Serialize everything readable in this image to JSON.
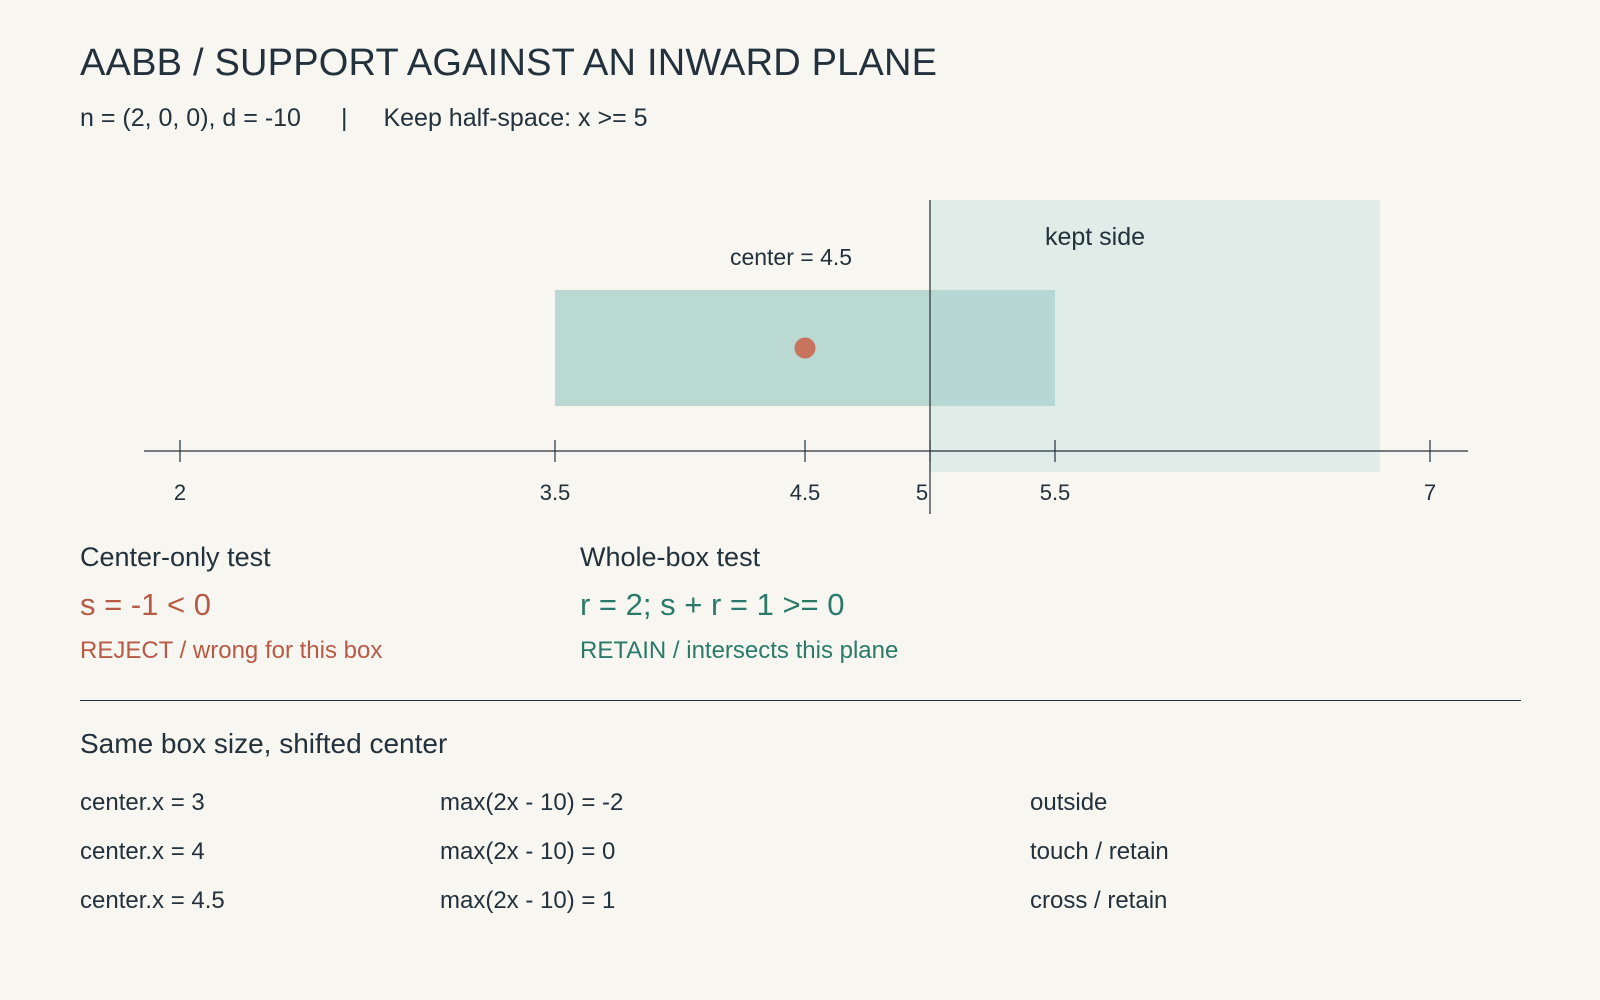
{
  "title": "AABB / SUPPORT AGAINST AN INWARD PLANE",
  "subtitle": {
    "plane": "n = (2, 0, 0), d = -10",
    "separator": "|",
    "halfspace": "Keep half-space: x >= 5"
  },
  "colors": {
    "background": "#f7f6f1",
    "ink": "#22313b",
    "box_fill": "#b3d6cf",
    "kept_fill": "#dfece7",
    "center_dot": "#c7735d",
    "reject": "#b85a45",
    "retain": "#2b7a69"
  },
  "chart_data": {
    "type": "interval",
    "axis": {
      "range": [
        1.8,
        7.2
      ],
      "ticks": [
        2,
        3.5,
        4.5,
        5,
        5.5,
        7
      ],
      "tick_labels": [
        "2",
        "3.5",
        "4.5",
        "5",
        "5.5",
        "7"
      ]
    },
    "box": {
      "min": 3.5,
      "max": 5.5,
      "center": 4.5
    },
    "plane_x": 5,
    "kept_region": {
      "from": 5,
      "to": 6.8,
      "label": "kept side"
    },
    "center_label": "center = 4.5"
  },
  "panels": {
    "center_only": {
      "heading": "Center-only test",
      "formula": "s = -1 < 0",
      "verdict": "REJECT / wrong for this box"
    },
    "whole_box": {
      "heading": "Whole-box test",
      "formula": "r = 2; s + r = 1 >= 0",
      "verdict": "RETAIN / intersects this plane"
    }
  },
  "shifted": {
    "heading": "Same box size, shifted center",
    "rows": [
      {
        "center": "center.x = 3",
        "support": "max(2x - 10) = -2",
        "result": "outside"
      },
      {
        "center": "center.x = 4",
        "support": "max(2x - 10) = 0",
        "result": "touch / retain"
      },
      {
        "center": "center.x = 4.5",
        "support": "max(2x - 10) = 1",
        "result": "cross / retain"
      }
    ]
  }
}
